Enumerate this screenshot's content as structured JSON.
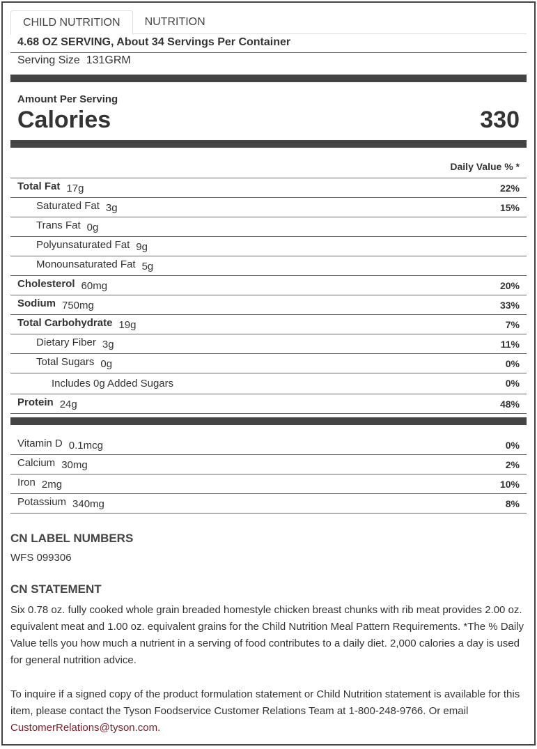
{
  "tabs": [
    {
      "label": "CHILD NUTRITION",
      "active": true
    },
    {
      "label": "NUTRITION",
      "active": false
    }
  ],
  "serving_header": "4.68 OZ SERVING, About 34 Servings Per Container",
  "serving_size": {
    "label": "Serving Size",
    "value": "131GRM"
  },
  "amount_per_serving": "Amount Per Serving",
  "calories": {
    "label": "Calories",
    "value": "330"
  },
  "daily_value_header": "Daily Value % *",
  "nutrients": [
    {
      "name": "Total Fat",
      "amount": "17g",
      "dv": "22%",
      "bold": true,
      "indent": 0
    },
    {
      "name": "Saturated Fat",
      "amount": "3g",
      "dv": "15%",
      "bold": false,
      "indent": 1
    },
    {
      "name": "Trans Fat",
      "amount": "0g",
      "dv": "",
      "bold": false,
      "indent": 1
    },
    {
      "name": "Polyunsaturated Fat",
      "amount": "9g",
      "dv": "",
      "bold": false,
      "indent": 1
    },
    {
      "name": "Monounsaturated Fat",
      "amount": "5g",
      "dv": "",
      "bold": false,
      "indent": 1
    },
    {
      "name": "Cholesterol",
      "amount": "60mg",
      "dv": "20%",
      "bold": true,
      "indent": 0
    },
    {
      "name": "Sodium",
      "amount": "750mg",
      "dv": "33%",
      "bold": true,
      "indent": 0
    },
    {
      "name": "Total Carbohydrate",
      "amount": "19g",
      "dv": "7%",
      "bold": true,
      "indent": 0
    },
    {
      "name": "Dietary Fiber",
      "amount": "3g",
      "dv": "11%",
      "bold": false,
      "indent": 1
    },
    {
      "name": "Total Sugars",
      "amount": "0g",
      "dv": "0%",
      "bold": false,
      "indent": 1
    },
    {
      "name": "Includes 0g Added Sugars",
      "amount": "",
      "dv": "0%",
      "bold": false,
      "indent": 2
    },
    {
      "name": "Protein",
      "amount": "24g",
      "dv": "48%",
      "bold": true,
      "indent": 0
    }
  ],
  "vitamins": [
    {
      "name": "Vitamin D",
      "amount": "0.1mcg",
      "dv": "0%"
    },
    {
      "name": "Calcium",
      "amount": "30mg",
      "dv": "2%"
    },
    {
      "name": "Iron",
      "amount": "2mg",
      "dv": "10%"
    },
    {
      "name": "Potassium",
      "amount": "340mg",
      "dv": "8%"
    }
  ],
  "cn_label": {
    "heading": "CN LABEL NUMBERS",
    "value": "WFS 099306"
  },
  "cn_statement": {
    "heading": "CN STATEMENT",
    "text": "Six 0.78 oz. fully cooked whole grain breaded homestyle chicken breast chunks with rib meat provides 2.00 oz. equivalent meat and 1.00 oz. equivalent grains for the Child Nutrition Meal Pattern Requirements. *The % Daily Value tells you how much a nutrient in a serving of food contributes to a daily diet. 2,000 calories a day is used for general nutrition advice."
  },
  "inquiry": {
    "text": "To inquire if a signed copy of the product formulation statement or Child Nutrition statement is available for this item, please contact the Tyson Foodservice Customer Relations Team at 1-800-248-9766. Or email ",
    "email": "CustomerRelations@tyson.com",
    "end": "."
  },
  "colors": {
    "link": "#7a1f2b",
    "bar": "#444444"
  }
}
